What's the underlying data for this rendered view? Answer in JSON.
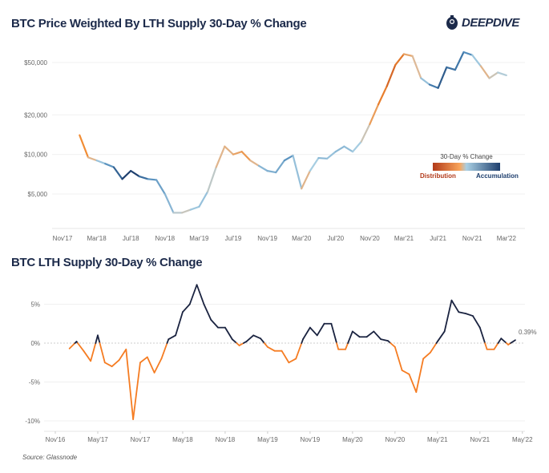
{
  "logo": {
    "text": "DEEPDIVE",
    "icon": "diver-helmet-icon"
  },
  "source": "Source: Glassnode",
  "colors": {
    "distribution": "#b23a1a",
    "accumulation": "#1e3f6e",
    "negative_line": "#f57c22",
    "positive_line": "#1a2340"
  },
  "chart_data": [
    {
      "type": "line",
      "title": "BTC Price Weighted By LTH Supply 30-Day % Change",
      "yscale": "log",
      "ylim": [
        2800,
        72000
      ],
      "yticks": [
        {
          "v": 50000,
          "label": "$50,000"
        },
        {
          "v": 20000,
          "label": "$20,000"
        },
        {
          "v": 10000,
          "label": "$10,000"
        },
        {
          "v": 5000,
          "label": "$5,000"
        }
      ],
      "xticks": [
        {
          "d": "2017-11",
          "label": "Nov'17"
        },
        {
          "d": "2018-03",
          "label": "Mar'18"
        },
        {
          "d": "2018-07",
          "label": "Jul'18"
        },
        {
          "d": "2018-11",
          "label": "Nov'18"
        },
        {
          "d": "2019-03",
          "label": "Mar'19"
        },
        {
          "d": "2019-07",
          "label": "Jul'19"
        },
        {
          "d": "2019-11",
          "label": "Nov'19"
        },
        {
          "d": "2020-03",
          "label": "Mar'20"
        },
        {
          "d": "2020-07",
          "label": "Jul'20"
        },
        {
          "d": "2020-11",
          "label": "Nov'20"
        },
        {
          "d": "2021-03",
          "label": "Mar'21"
        },
        {
          "d": "2021-07",
          "label": "Jul'21"
        },
        {
          "d": "2021-11",
          "label": "Nov'21"
        },
        {
          "d": "2022-03",
          "label": "Mar'22"
        }
      ],
      "grid": true,
      "color_by": "LTH supply 30-day % change",
      "legend": {
        "title": "30-Day % Change",
        "low_label": "Distribution",
        "high_label": "Accumulation",
        "placement": "right"
      },
      "x": [
        "2018-01",
        "2018-02",
        "2018-03",
        "2018-04",
        "2018-05",
        "2018-06",
        "2018-07",
        "2018-08",
        "2018-09",
        "2018-10",
        "2018-11",
        "2018-12",
        "2019-01",
        "2019-02",
        "2019-03",
        "2019-04",
        "2019-05",
        "2019-06",
        "2019-07",
        "2019-08",
        "2019-09",
        "2019-10",
        "2019-11",
        "2019-12",
        "2020-01",
        "2020-02",
        "2020-03",
        "2020-04",
        "2020-05",
        "2020-06",
        "2020-07",
        "2020-08",
        "2020-09",
        "2020-10",
        "2020-11",
        "2020-12",
        "2021-01",
        "2021-02",
        "2021-03",
        "2021-04",
        "2021-05",
        "2021-06",
        "2021-07",
        "2021-08",
        "2021-09",
        "2021-10",
        "2021-11",
        "2021-12",
        "2022-01",
        "2022-02",
        "2022-03"
      ],
      "values": [
        14000,
        9500,
        9000,
        8500,
        8000,
        6500,
        7500,
        6800,
        6500,
        6400,
        5000,
        3600,
        3600,
        3800,
        4000,
        5200,
        8000,
        11500,
        10000,
        10500,
        9000,
        8200,
        7500,
        7300,
        9000,
        9800,
        5500,
        7500,
        9400,
        9300,
        10500,
        11500,
        10500,
        12500,
        17000,
        24000,
        33000,
        48000,
        58000,
        56000,
        38000,
        34000,
        32000,
        46000,
        44000,
        60000,
        57000,
        47000,
        38000,
        42000,
        40000
      ]
    },
    {
      "type": "line",
      "title": "BTC LTH Supply 30-Day % Change",
      "ylim": [
        -10.5,
        8
      ],
      "yticks": [
        {
          "v": 5,
          "label": "5%"
        },
        {
          "v": 0,
          "label": "0%"
        },
        {
          "v": -5,
          "label": "-5%"
        },
        {
          "v": -10,
          "label": "-10%"
        }
      ],
      "xticks": [
        {
          "d": "2016-11",
          "label": "Nov'16"
        },
        {
          "d": "2017-05",
          "label": "May'17"
        },
        {
          "d": "2017-11",
          "label": "Nov'17"
        },
        {
          "d": "2018-05",
          "label": "May'18"
        },
        {
          "d": "2018-11",
          "label": "Nov'18"
        },
        {
          "d": "2019-05",
          "label": "May'19"
        },
        {
          "d": "2019-11",
          "label": "Nov'19"
        },
        {
          "d": "2020-05",
          "label": "May'20"
        },
        {
          "d": "2020-11",
          "label": "Nov'20"
        },
        {
          "d": "2021-05",
          "label": "May'21"
        },
        {
          "d": "2021-11",
          "label": "Nov'21"
        },
        {
          "d": "2022-05",
          "label": "May'22"
        }
      ],
      "grid": true,
      "last_label": "0.39%",
      "x": [
        "2017-01",
        "2017-02",
        "2017-03",
        "2017-04",
        "2017-05",
        "2017-06",
        "2017-07",
        "2017-08",
        "2017-09",
        "2017-10",
        "2017-11",
        "2017-12",
        "2018-01",
        "2018-02",
        "2018-03",
        "2018-04",
        "2018-05",
        "2018-06",
        "2018-07",
        "2018-08",
        "2018-09",
        "2018-10",
        "2018-11",
        "2018-12",
        "2019-01",
        "2019-02",
        "2019-03",
        "2019-04",
        "2019-05",
        "2019-06",
        "2019-07",
        "2019-08",
        "2019-09",
        "2019-10",
        "2019-11",
        "2019-12",
        "2020-01",
        "2020-02",
        "2020-03",
        "2020-04",
        "2020-05",
        "2020-06",
        "2020-07",
        "2020-08",
        "2020-09",
        "2020-10",
        "2020-11",
        "2020-12",
        "2021-01",
        "2021-02",
        "2021-03",
        "2021-04",
        "2021-05",
        "2021-06",
        "2021-07",
        "2021-08",
        "2021-09",
        "2021-10",
        "2021-11",
        "2021-12",
        "2022-01",
        "2022-02",
        "2022-03",
        "2022-04"
      ],
      "values": [
        -0.7,
        0.2,
        -1,
        -2.3,
        1,
        -2.5,
        -3,
        -2.2,
        -0.8,
        -9.8,
        -2.5,
        -1.8,
        -3.8,
        -2,
        0.5,
        1,
        4,
        5,
        7.5,
        5,
        3,
        2,
        2,
        0.5,
        -0.3,
        0.2,
        1,
        0.6,
        -0.5,
        -1,
        -1,
        -2.5,
        -2,
        0.5,
        2,
        1,
        2.5,
        2.5,
        -0.8,
        -0.8,
        1.5,
        0.8,
        0.8,
        1.5,
        0.5,
        0.3,
        -0.5,
        -3.5,
        -4,
        -6.3,
        -2,
        -1.2,
        0.2,
        1.5,
        5.5,
        4,
        3.8,
        3.5,
        2,
        -0.8,
        -0.8,
        0.6,
        -0.2,
        0.39
      ]
    }
  ]
}
